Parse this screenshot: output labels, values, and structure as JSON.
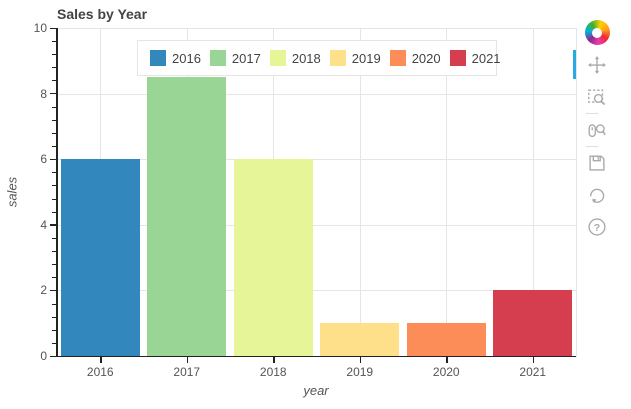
{
  "chart_data": {
    "type": "bar",
    "title": "Sales by Year",
    "xlabel": "year",
    "ylabel": "sales",
    "categories": [
      "2016",
      "2017",
      "2018",
      "2019",
      "2020",
      "2021"
    ],
    "values": [
      6,
      8.5,
      6,
      1,
      1,
      2
    ],
    "colors": [
      "#3288bd",
      "#99d594",
      "#e6f598",
      "#fee08b",
      "#fc8d59",
      "#d53e4f"
    ],
    "ylim": [
      0,
      10
    ],
    "yticks": [
      0,
      2,
      4,
      6,
      8,
      10
    ],
    "minor_tick_step": 0.4,
    "grid": "on",
    "legend": {
      "position": "top-center",
      "labels": [
        "2016",
        "2017",
        "2018",
        "2019",
        "2020",
        "2021"
      ]
    }
  },
  "toolbar": {
    "logo": "bokeh-logo",
    "active_tool": "pan",
    "active_color": "#26aae1",
    "icon_color": "#a9a9a9",
    "tools": [
      {
        "id": "pan",
        "icon": "pan-move-icon",
        "active": true
      },
      {
        "id": "box-zoom",
        "icon": "box-zoom-icon",
        "active": false
      },
      {
        "id": "wheel-zoom",
        "icon": "wheel-zoom-icon",
        "active": false
      },
      {
        "id": "save",
        "icon": "save-floppy-icon",
        "active": false
      },
      {
        "id": "reset",
        "icon": "reset-refresh-icon",
        "active": false
      },
      {
        "id": "help",
        "icon": "help-icon",
        "active": false,
        "glyph": "?"
      }
    ]
  }
}
